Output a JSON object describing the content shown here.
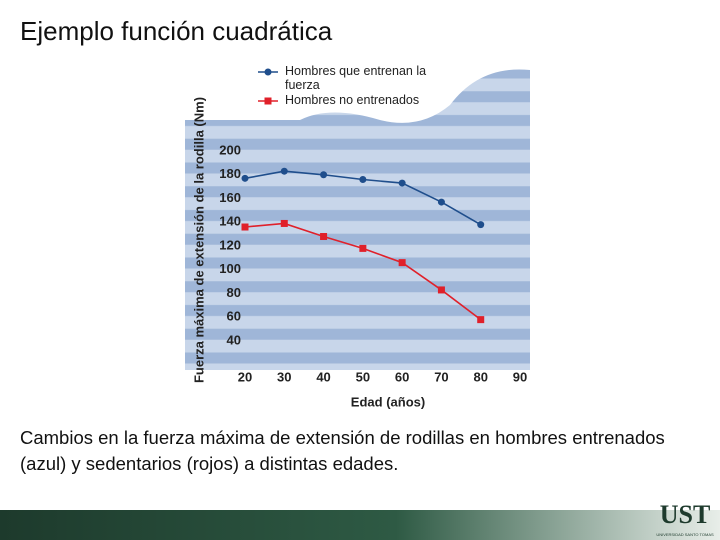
{
  "slide": {
    "title": "Ejemplo función cuadrática",
    "caption": "Cambios en la fuerza máxima de extensión de rodillas en hombres entrenados (azul) y sedentarios (rojos) a distintas edades.",
    "logo": "UST",
    "logo_subtitle": "UNIVERSIDAD SANTO TOMAS"
  },
  "chart_data": {
    "type": "line",
    "x_label": "Edad (años)",
    "y_label": "Fuerza máxima de extensión de la rodilla (Nm)",
    "x": [
      20,
      30,
      40,
      50,
      60,
      70,
      80
    ],
    "series": [
      {
        "name": "Hombres que entrenan la fuerza",
        "color": "#1f4e8c",
        "marker": "circle",
        "values": [
          177,
          183,
          180,
          176,
          173,
          157,
          138
        ]
      },
      {
        "name": "Hombres no entrenados",
        "color": "#e0202a",
        "marker": "square",
        "values": [
          136,
          139,
          128,
          118,
          106,
          83,
          58
        ]
      }
    ],
    "xlim": [
      20,
      90
    ],
    "xticks": [
      20,
      30,
      40,
      50,
      60,
      70,
      80,
      90
    ],
    "ylim": [
      20,
      270
    ],
    "yticks": [
      40,
      60,
      80,
      100,
      120,
      140,
      160,
      180,
      200
    ],
    "legend": "top-left"
  }
}
